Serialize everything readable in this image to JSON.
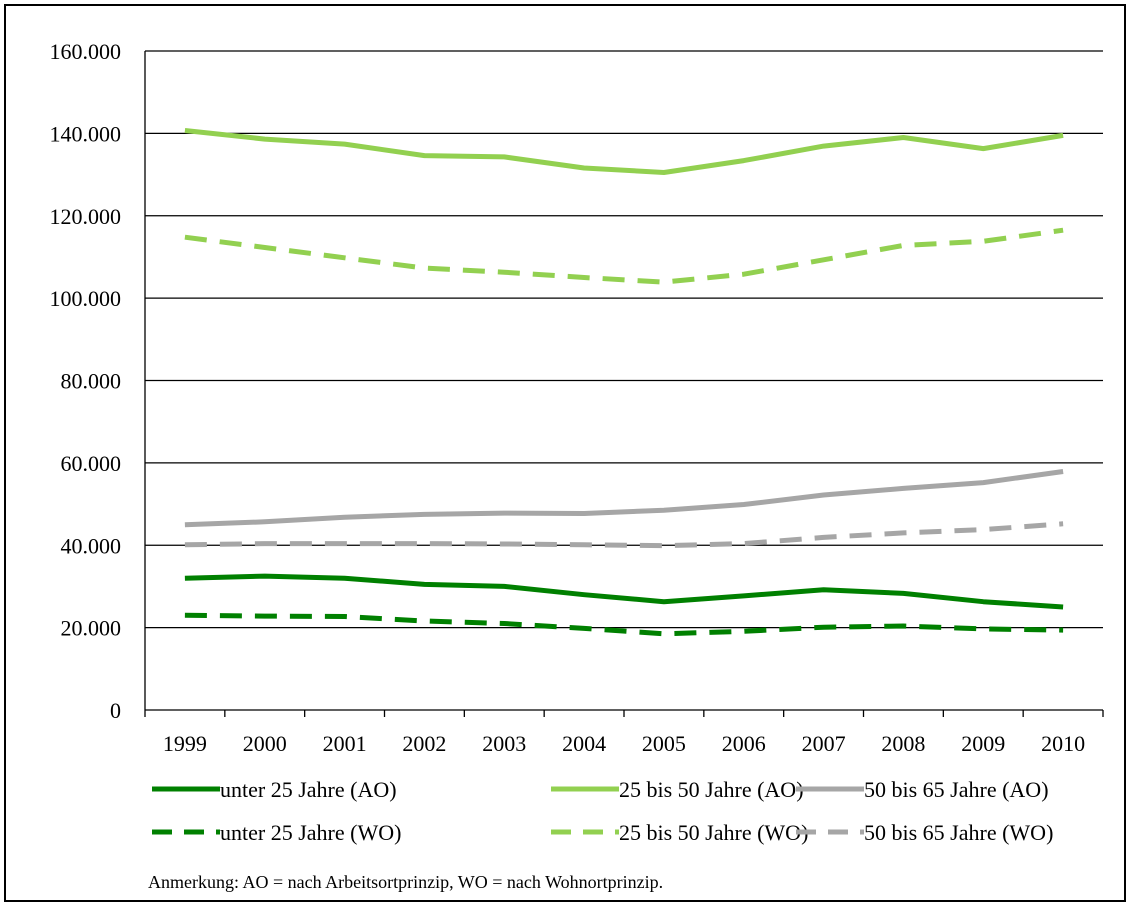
{
  "chart_data": {
    "type": "line",
    "x": [
      "1999",
      "2000",
      "2001",
      "2002",
      "2003",
      "2004",
      "2005",
      "2006",
      "2007",
      "2008",
      "2009",
      "2010"
    ],
    "ylim": [
      0,
      160000
    ],
    "yticks": [
      0,
      20000,
      40000,
      60000,
      80000,
      100000,
      120000,
      140000,
      160000
    ],
    "ytick_labels": [
      "0",
      "20.000",
      "40.000",
      "60.000",
      "80.000",
      "100.000",
      "120.000",
      "140.000",
      "160.000"
    ],
    "grid": "horizontal",
    "legend_position": "bottom",
    "series": [
      {
        "name": "unter 25 Jahre (AO)",
        "color": "#008000",
        "dash": "solid",
        "values": [
          32000,
          32500,
          32000,
          30500,
          30000,
          28000,
          26300,
          27700,
          29200,
          28300,
          26300,
          25000
        ]
      },
      {
        "name": "25 bis 50 Jahre (AO)",
        "color": "#92D050",
        "dash": "solid",
        "values": [
          140700,
          138600,
          137400,
          134600,
          134300,
          131600,
          130500,
          133400,
          136900,
          139000,
          136300,
          139500
        ]
      },
      {
        "name": "50 bis 65 Jahre (AO)",
        "color": "#A6A6A6",
        "dash": "solid",
        "values": [
          45000,
          45700,
          46800,
          47500,
          47800,
          47700,
          48500,
          49900,
          52200,
          53800,
          55200,
          57900
        ]
      },
      {
        "name": "unter 25 Jahre (WO)",
        "color": "#008000",
        "dash": "dashed",
        "values": [
          23000,
          22800,
          22700,
          21600,
          21000,
          19800,
          18500,
          19100,
          20100,
          20400,
          19700,
          19400
        ]
      },
      {
        "name": "25 bis 50 Jahre (WO)",
        "color": "#92D050",
        "dash": "dashed",
        "values": [
          114800,
          112300,
          109800,
          107300,
          106300,
          105000,
          103900,
          105800,
          109300,
          112800,
          113800,
          116500
        ]
      },
      {
        "name": "50 bis 65 Jahre (WO)",
        "color": "#A6A6A6",
        "dash": "dashed",
        "values": [
          40100,
          40400,
          40400,
          40400,
          40300,
          40100,
          39900,
          40400,
          41900,
          43000,
          43800,
          45200
        ]
      }
    ]
  },
  "note": "Anmerkung: AO = nach Arbeitsortprinzip, WO = nach Wohnortprinzip."
}
